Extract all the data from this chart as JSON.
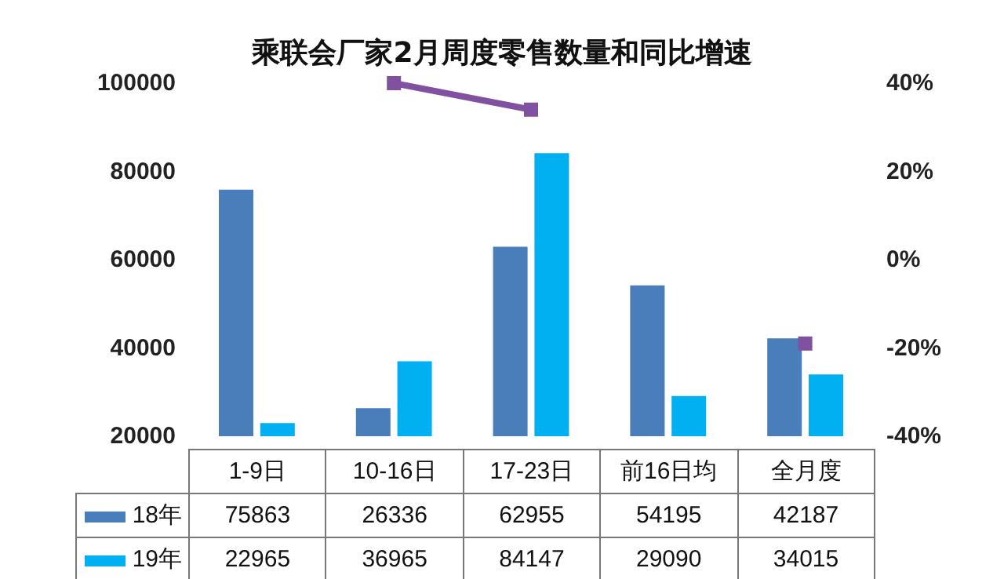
{
  "chart_data": {
    "type": "bar",
    "title": "乘联会厂家2月周度零售数量和同比增速",
    "categories": [
      "1-9日",
      "10-16日",
      "17-23日",
      "前16日均",
      "全月度"
    ],
    "series": [
      {
        "name": "18年",
        "color": "#4a7ebb",
        "values": [
          75863,
          26336,
          62955,
          54195,
          42187
        ],
        "value_labels": [
          "75863",
          "26336",
          "62955",
          "54195",
          "42187"
        ]
      },
      {
        "name": "19年",
        "color": "#00b0f0",
        "values": [
          22965,
          36965,
          84147,
          29090,
          34015
        ],
        "value_labels": [
          "22965",
          "36965",
          "84147",
          "29090",
          "34015"
        ]
      },
      {
        "type": "line",
        "axis": "y2",
        "color": "#7f51a0",
        "values": [
          null,
          40,
          34,
          null,
          -19
        ]
      }
    ],
    "ylim": [
      20000,
      100000
    ],
    "yticks": [
      20000,
      40000,
      60000,
      80000,
      100000
    ],
    "y2lim": [
      -40,
      40
    ],
    "y2ticks": [
      {
        "value": -40,
        "label": "-40%"
      },
      {
        "value": -20,
        "label": "-20%"
      },
      {
        "value": 0,
        "label": "0%"
      },
      {
        "value": 20,
        "label": "20%"
      },
      {
        "value": 40,
        "label": "40%"
      }
    ],
    "legend": "bottom",
    "grid": false,
    "marker": "square",
    "line_style": "solid"
  }
}
